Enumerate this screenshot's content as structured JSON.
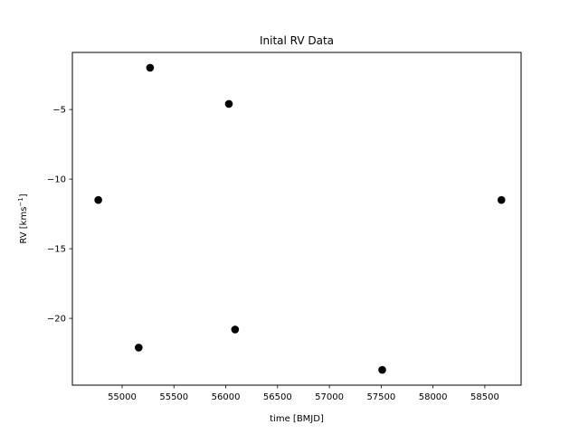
{
  "chart_data": {
    "type": "scatter",
    "title": "Inital RV Data",
    "xlabel": "time [BMJD]",
    "ylabel_main": "RV [kms",
    "ylabel_sup": "−1",
    "ylabel_close": "]",
    "xlim": [
      54520,
      58850
    ],
    "ylim": [
      -24.8,
      -0.9
    ],
    "xticks": [
      55000,
      55500,
      56000,
      56500,
      57000,
      57500,
      58000,
      58500
    ],
    "yticks": [
      -5,
      -10,
      -15,
      -20
    ],
    "ytick_labels": [
      "−5",
      "−10",
      "−15",
      "−20"
    ],
    "marker_color": "#000000",
    "points": [
      {
        "x": 54770,
        "y": -11.5
      },
      {
        "x": 55160,
        "y": -22.1
      },
      {
        "x": 55270,
        "y": -2.0
      },
      {
        "x": 56030,
        "y": -4.6
      },
      {
        "x": 56090,
        "y": -20.8
      },
      {
        "x": 57510,
        "y": -23.7
      },
      {
        "x": 58660,
        "y": -11.5
      }
    ]
  }
}
